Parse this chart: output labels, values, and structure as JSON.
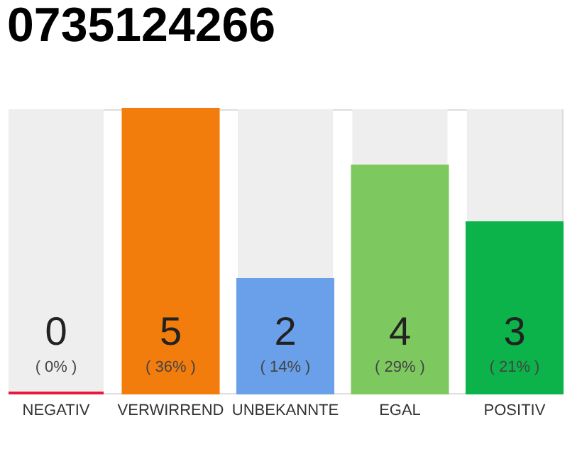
{
  "chart_data": {
    "type": "bar",
    "title": "0735124266",
    "categories": [
      "NEGATIV",
      "VERWIRREND",
      "UNBEKANNTE",
      "EGAL",
      "POSITIV"
    ],
    "values": [
      0,
      5,
      2,
      4,
      3
    ],
    "colors": [
      "#e8193c",
      "#f27c0c",
      "#6aa0ea",
      "#7ec95f",
      "#0bb34a"
    ],
    "ylim": [
      0,
      5
    ],
    "tick_labels": "x",
    "grid": false,
    "data_labels": true,
    "annotations": [
      "( 0% )",
      "( 36% )",
      "( 14% )",
      "( 29% )",
      "( 21% )"
    ]
  }
}
